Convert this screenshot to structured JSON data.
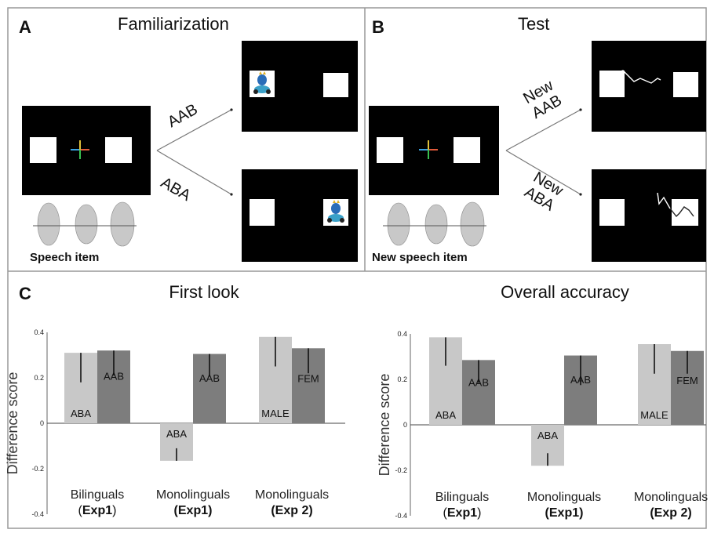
{
  "panel_a": {
    "letter": "A",
    "title": "Familiarization",
    "speech_label": "Speech item",
    "arrow_top": "AAB",
    "arrow_bottom": "ABA"
  },
  "panel_b": {
    "letter": "B",
    "title": "Test",
    "speech_label": "New speech item",
    "arrow_top": "New\nAAB",
    "arrow_bottom": "New\nABA"
  },
  "panel_c": {
    "letter": "C"
  },
  "chart_data": [
    {
      "type": "bar",
      "title": "First look",
      "ylabel": "Difference score",
      "ylim": [
        -0.4,
        0.4
      ],
      "yticks": [
        "0.4",
        "0.2",
        "0",
        "-0.2",
        "-0.4"
      ],
      "ytick_values": [
        0.4,
        0.2,
        0,
        -0.2,
        -0.4
      ],
      "groups": [
        {
          "label": "Bilinguals",
          "sublabel_prefix": "(",
          "sublabel_bold": "Exp1",
          "sublabel_suffix": ")",
          "bars": [
            {
              "label": "ABA",
              "value": 0.31,
              "err": 0.13,
              "color": "#c8c8c8"
            },
            {
              "label": "AAB",
              "value": 0.32,
              "err": 0.11,
              "color": "#7d7d7d"
            }
          ]
        },
        {
          "label": "Monolinguals",
          "sublabel_prefix": "",
          "sublabel_bold": "(Exp1)",
          "sublabel_suffix": "",
          "bars": [
            {
              "label": "ABA",
              "value": -0.165,
              "err": 0.055,
              "color": "#c8c8c8"
            },
            {
              "label": "AAB",
              "value": 0.305,
              "err": 0.1,
              "color": "#7d7d7d"
            }
          ]
        },
        {
          "label": "Monolinguals",
          "sublabel_prefix": "",
          "sublabel_bold": "(Exp 2)",
          "sublabel_suffix": "",
          "bars": [
            {
              "label": "MALE",
              "value": 0.38,
              "err": 0.13,
              "color": "#c8c8c8"
            },
            {
              "label": "FEM",
              "value": 0.33,
              "err": 0.11,
              "color": "#7d7d7d"
            }
          ]
        }
      ]
    },
    {
      "type": "bar",
      "title": "Overall accuracy",
      "ylabel": "Difference score",
      "ylim": [
        -0.4,
        0.4
      ],
      "yticks": [
        "0.4",
        "0.2",
        "0",
        "-0.2",
        "-0.4"
      ],
      "ytick_values": [
        0.4,
        0.2,
        0,
        -0.2,
        -0.4
      ],
      "groups": [
        {
          "label": "Bilinguals",
          "sublabel_prefix": "(",
          "sublabel_bold": "Exp1",
          "sublabel_suffix": ")",
          "bars": [
            {
              "label": "ABA",
              "value": 0.385,
              "err": 0.125,
              "color": "#c8c8c8"
            },
            {
              "label": "AAB",
              "value": 0.285,
              "err": 0.1,
              "color": "#7d7d7d"
            }
          ]
        },
        {
          "label": "Monolinguals",
          "sublabel_prefix": "",
          "sublabel_bold": "(Exp1)",
          "sublabel_suffix": "",
          "bars": [
            {
              "label": "ABA",
              "value": -0.18,
              "err": 0.055,
              "color": "#c8c8c8"
            },
            {
              "label": "AAB",
              "value": 0.305,
              "err": 0.13,
              "color": "#7d7d7d"
            }
          ]
        },
        {
          "label": "Monolinguals",
          "sublabel_prefix": "",
          "sublabel_bold": "(Exp 2)",
          "sublabel_suffix": "",
          "bars": [
            {
              "label": "MALE",
              "value": 0.355,
              "err": 0.13,
              "color": "#c8c8c8"
            },
            {
              "label": "FEM",
              "value": 0.325,
              "err": 0.1,
              "color": "#7d7d7d"
            }
          ]
        }
      ]
    }
  ]
}
